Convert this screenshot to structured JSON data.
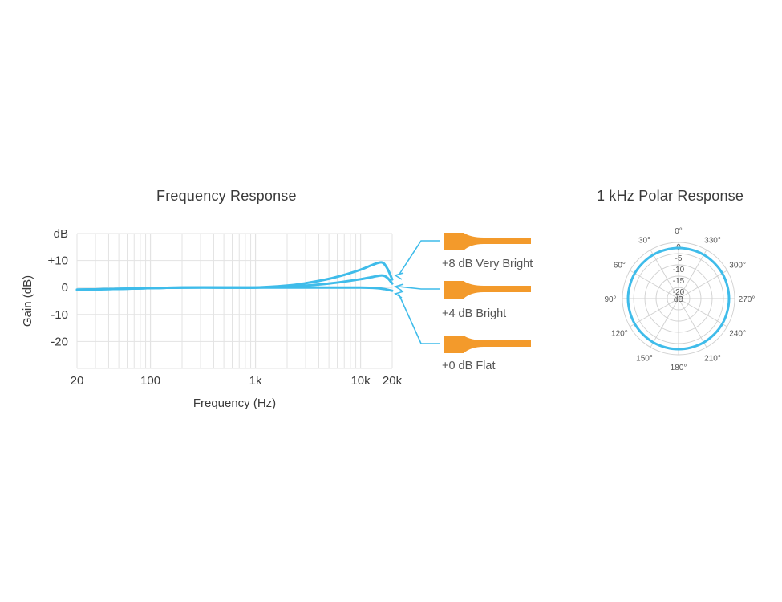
{
  "freq_title": "Frequency Response",
  "polar_title": "1 kHz Polar Response",
  "colors": {
    "curve": "#3fbcea",
    "grid": "#e3e3e3",
    "tip": "#f39a2b",
    "polar_grid": "#d0d0d0"
  },
  "chart_data": [
    {
      "type": "line",
      "title": "Frequency Response",
      "xlabel": "Frequency (Hz)",
      "ylabel": "Gain (dB)",
      "x_scale": "log",
      "xlim": [
        20,
        20000
      ],
      "ylim": [
        -30,
        20
      ],
      "x_ticks": [
        {
          "value": 20,
          "label": "20"
        },
        {
          "value": 100,
          "label": "100"
        },
        {
          "value": 1000,
          "label": "1k"
        },
        {
          "value": 10000,
          "label": "10k"
        },
        {
          "value": 20000,
          "label": "20k"
        }
      ],
      "y_ticks": [
        {
          "value": 20,
          "label": "dB"
        },
        {
          "value": 10,
          "label": "+10"
        },
        {
          "value": 0,
          "label": "0"
        },
        {
          "value": -10,
          "label": "-10"
        },
        {
          "value": -20,
          "label": "-20"
        }
      ],
      "grid": true,
      "series": [
        {
          "name": "+8 dB Very Bright",
          "x": [
            20,
            50,
            100,
            200,
            500,
            1000,
            2000,
            3000,
            5000,
            7000,
            10000,
            13000,
            16000,
            18000,
            20000
          ],
          "y": [
            -0.8,
            -0.5,
            -0.2,
            0,
            0,
            0,
            0.7,
            1.6,
            3.2,
            4.7,
            6.6,
            8.4,
            9.3,
            7.0,
            3.0
          ]
        },
        {
          "name": "+4 dB Bright",
          "x": [
            20,
            50,
            100,
            200,
            500,
            1000,
            2000,
            3000,
            5000,
            7000,
            10000,
            13000,
            16000,
            18000,
            20000
          ],
          "y": [
            -0.8,
            -0.5,
            -0.2,
            0,
            0,
            0,
            0.3,
            0.7,
            1.5,
            2.2,
            3.1,
            3.9,
            4.5,
            3.6,
            1.5
          ]
        },
        {
          "name": "+0 dB Flat",
          "x": [
            20,
            50,
            100,
            200,
            500,
            1000,
            2000,
            5000,
            10000,
            14000,
            17000,
            20000
          ],
          "y": [
            -0.8,
            -0.5,
            -0.2,
            0,
            0,
            0,
            0,
            0,
            0,
            -0.2,
            -0.6,
            -1.2
          ]
        }
      ]
    },
    {
      "type": "polar",
      "title": "1 kHz Polar Response",
      "center_label": "dB",
      "radial_ticks": [
        "0",
        "-5",
        "-10",
        "-15",
        "-20"
      ],
      "angle_labels": [
        "0°",
        "330°",
        "300°",
        "270°",
        "240°",
        "210°",
        "180°",
        "150°",
        "120°",
        "90°",
        "60°",
        "30°"
      ],
      "angles_deg": [
        0,
        330,
        300,
        270,
        240,
        210,
        180,
        150,
        120,
        90,
        60,
        30
      ],
      "series": [
        {
          "values_db": [
            -2.5,
            -2.5,
            -2.5,
            -2.5,
            -2.5,
            -2.5,
            -2.5,
            -2.5,
            -2.5,
            -2.5,
            -2.5,
            -2.5
          ]
        }
      ]
    }
  ],
  "legend_items": [
    {
      "label": "+8 dB Very Bright"
    },
    {
      "label": "+4 dB Bright"
    },
    {
      "label": "+0 dB Flat"
    }
  ]
}
